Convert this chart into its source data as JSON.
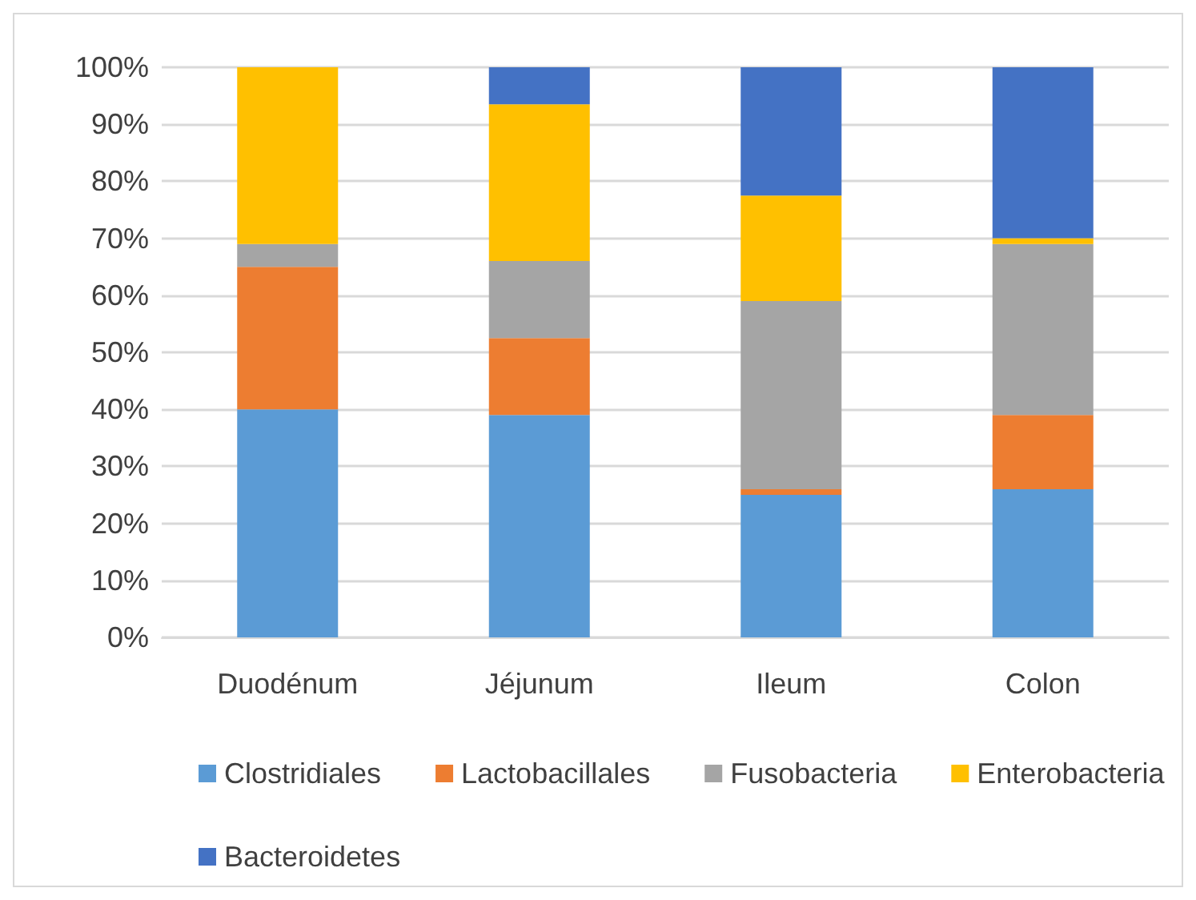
{
  "chart_data": {
    "type": "bar",
    "stacked": true,
    "categories": [
      "Duodénum",
      "Jéjunum",
      "Ileum",
      "Colon"
    ],
    "series": [
      {
        "name": "Clostridiales",
        "color": "#5b9bd5",
        "values": [
          40,
          39,
          25,
          26
        ]
      },
      {
        "name": "Lactobacillales",
        "color": "#ed7d31",
        "values": [
          25,
          13.5,
          1,
          13
        ]
      },
      {
        "name": "Fusobacteria",
        "color": "#a5a5a5",
        "values": [
          4,
          13.5,
          33,
          30
        ]
      },
      {
        "name": "Enterobacteria",
        "color": "#ffc000",
        "values": [
          31,
          27.5,
          18.5,
          1
        ]
      },
      {
        "name": "Bacteroidetes",
        "color": "#4472c4",
        "values": [
          0,
          6.5,
          22.5,
          30
        ]
      }
    ],
    "ylim": [
      0,
      100
    ],
    "yticks": [
      {
        "value": 0,
        "label": "0%"
      },
      {
        "value": 10,
        "label": "10%"
      },
      {
        "value": 20,
        "label": "20%"
      },
      {
        "value": 30,
        "label": "30%"
      },
      {
        "value": 40,
        "label": "40%"
      },
      {
        "value": 50,
        "label": "50%"
      },
      {
        "value": 60,
        "label": "60%"
      },
      {
        "value": 70,
        "label": "70%"
      },
      {
        "value": 80,
        "label": "80%"
      },
      {
        "value": 90,
        "label": "90%"
      },
      {
        "value": 100,
        "label": "100%"
      }
    ],
    "grid": "y",
    "legend": "bottom"
  }
}
